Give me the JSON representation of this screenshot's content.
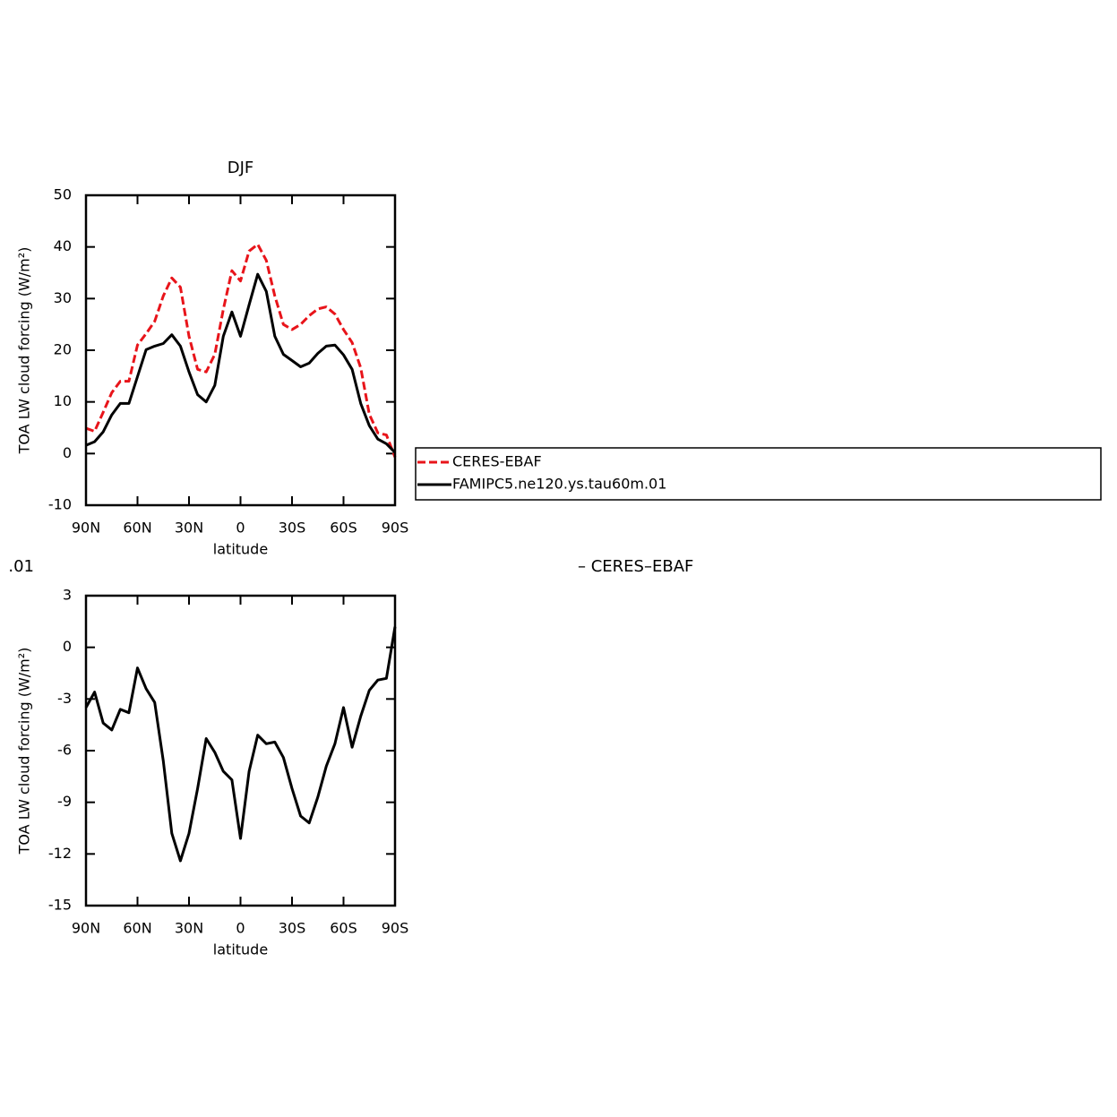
{
  "chart_data": [
    {
      "type": "line",
      "title": "DJF",
      "x": [
        90,
        85,
        80,
        75,
        70,
        65,
        60,
        55,
        50,
        45,
        40,
        35,
        30,
        25,
        20,
        15,
        10,
        5,
        0,
        -5,
        -10,
        -15,
        -20,
        -25,
        -30,
        -35,
        -40,
        -45,
        -50,
        -55,
        -60,
        -65,
        -70,
        -75,
        -80,
        -85,
        -90
      ],
      "series": [
        {
          "name": "CERES-EBAF",
          "color": "#e8141a",
          "line_style": "dashed",
          "values": [
            4.9,
            4.3,
            8,
            11.8,
            14,
            14,
            21,
            23.2,
            25.6,
            30.5,
            34,
            32.2,
            22.7,
            16.3,
            15.8,
            19.2,
            27.9,
            35.4,
            33.4,
            39.2,
            40.5,
            37.4,
            30.5,
            25,
            24,
            25,
            26.7,
            28,
            28.4,
            27,
            24,
            21.5,
            16.6,
            7.6,
            4,
            3.6,
            -0.7
          ]
        },
        {
          "name": "FAMIPC5.ne120.ys.tau60m.01",
          "color": "#000000",
          "line_style": "solid",
          "values": [
            1.6,
            2.3,
            4.2,
            7.5,
            9.7,
            9.7,
            14.9,
            20.1,
            20.8,
            21.3,
            23,
            20.8,
            15.8,
            11.4,
            10,
            13.2,
            22.7,
            27.4,
            22.7,
            28.8,
            34.7,
            31.4,
            22.7,
            19.2,
            18,
            16.8,
            17.5,
            19.4,
            20.8,
            21,
            19.1,
            16.3,
            9.7,
            5.4,
            2.8,
            1.9,
            0.2
          ]
        }
      ],
      "x_label": "latitude",
      "y_label": "TOA LW cloud forcing (W/m²)",
      "xlim": [
        90,
        -90
      ],
      "xticks": [
        {
          "value": 90,
          "label": "90N"
        },
        {
          "value": 60,
          "label": "60N"
        },
        {
          "value": 30,
          "label": "30N"
        },
        0,
        {
          "value": -30,
          "label": "30S"
        },
        {
          "value": -60,
          "label": "60S"
        },
        {
          "value": -90,
          "label": "90S"
        }
      ],
      "ylim": [
        -10,
        50
      ],
      "yticks": [
        -10,
        0,
        10,
        20,
        30,
        40,
        50
      ],
      "legend": "right"
    },
    {
      "type": "line",
      "title_left": ".01",
      "title_right": "– CERES–EBAF",
      "x": [
        90,
        85,
        80,
        75,
        70,
        65,
        60,
        55,
        50,
        45,
        40,
        35,
        30,
        25,
        20,
        15,
        10,
        5,
        0,
        -5,
        -10,
        -15,
        -20,
        -25,
        -30,
        -35,
        -40,
        -45,
        -50,
        -55,
        -60,
        -65,
        -70,
        -75,
        -80,
        -85,
        -90
      ],
      "values": [
        -3.5,
        -2.6,
        -4.4,
        -4.8,
        -3.6,
        -3.8,
        -1.2,
        -2.4,
        -3.2,
        -6.6,
        -10.8,
        -12.4,
        -10.8,
        -8.2,
        -5.3,
        -6.1,
        -7.2,
        -7.7,
        -11.1,
        -7.2,
        -5.1,
        -5.6,
        -5.5,
        -6.4,
        -8.2,
        -9.8,
        -10.2,
        -8.7,
        -6.9,
        -5.6,
        -3.5,
        -5.8,
        -4,
        -2.5,
        -1.9,
        -1.8,
        1.2
      ],
      "color": "#000000",
      "x_label": "latitude",
      "y_label": "TOA LW cloud forcing (W/m²)",
      "xlim": [
        90,
        -90
      ],
      "xticks": [
        {
          "value": 90,
          "label": "90N"
        },
        {
          "value": 60,
          "label": "60N"
        },
        {
          "value": 30,
          "label": "30N"
        },
        0,
        {
          "value": -30,
          "label": "30S"
        },
        {
          "value": -60,
          "label": "60S"
        },
        {
          "value": -90,
          "label": "90S"
        }
      ],
      "ylim": [
        -15,
        3
      ],
      "yticks": [
        -15,
        -12,
        -9,
        -6,
        -3,
        0,
        3
      ]
    }
  ]
}
